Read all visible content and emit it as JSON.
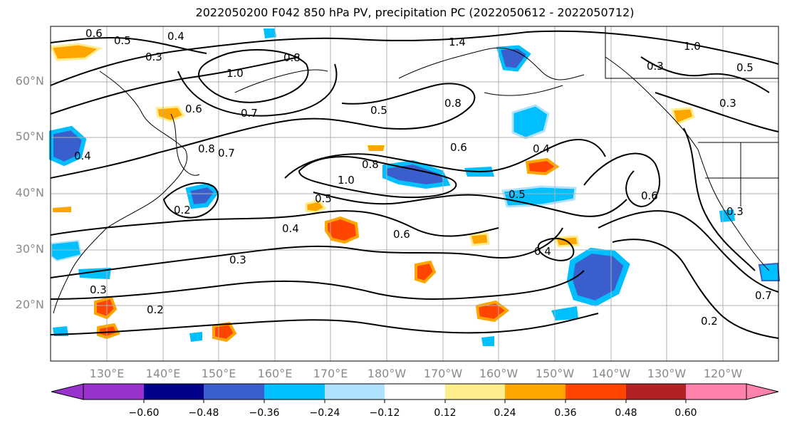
{
  "title": "2022050200 F042 850 hPa PV, precipitation PC (2022050612 - 2022050712)",
  "lat_labels": [
    "60°N",
    "50°N",
    "40°N",
    "30°N",
    "20°N"
  ],
  "lon_labels": [
    "130°E",
    "140°E",
    "150°E",
    "160°E",
    "170°E",
    "180°W",
    "170°W",
    "160°W",
    "150°W",
    "140°W",
    "130°W",
    "120°W"
  ],
  "colorbar": {
    "ticks": [
      "−0.60",
      "−0.48",
      "−0.36",
      "−0.24",
      "−0.12",
      "0.12",
      "0.24",
      "0.36",
      "0.48",
      "0.60"
    ],
    "colors": [
      "#9932cc",
      "#00008b",
      "#3a5fcd",
      "#00bfff",
      "#b0e2ff",
      "#ffffff",
      "#ffec8b",
      "#ffa500",
      "#ff4500",
      "#b22222",
      "#ff82ab"
    ]
  },
  "contour_labels": [
    {
      "text": "0.4"
    },
    {
      "text": "0.5"
    },
    {
      "text": "0.6"
    },
    {
      "text": "0.3"
    },
    {
      "text": "0.8"
    },
    {
      "text": "1.0"
    },
    {
      "text": "0.7"
    },
    {
      "text": "1.4"
    },
    {
      "text": "0.5"
    },
    {
      "text": "0.6"
    },
    {
      "text": "0.8"
    },
    {
      "text": "0.6"
    },
    {
      "text": "0.4"
    },
    {
      "text": "0.8"
    },
    {
      "text": "0.7"
    },
    {
      "text": "1.0"
    },
    {
      "text": "0.8"
    },
    {
      "text": "0.5"
    },
    {
      "text": "0.5"
    },
    {
      "text": "0.4"
    },
    {
      "text": "0.6"
    },
    {
      "text": "0.3"
    },
    {
      "text": "0.2"
    },
    {
      "text": "0.2"
    },
    {
      "text": "0.4"
    },
    {
      "text": "0.3"
    },
    {
      "text": "0.2"
    },
    {
      "text": "1.0"
    },
    {
      "text": "0.3"
    },
    {
      "text": "0.5"
    },
    {
      "text": "0.3"
    },
    {
      "text": "0.6"
    },
    {
      "text": "0.3"
    },
    {
      "text": "0.7"
    },
    {
      "text": "0.4"
    }
  ]
}
